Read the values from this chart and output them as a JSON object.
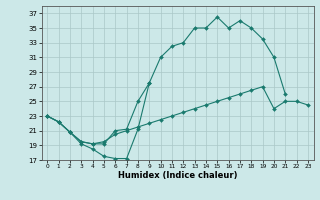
{
  "background_color": "#cce8e8",
  "line_color": "#1a7a6e",
  "grid_color": "#aac8c8",
  "xlabel": "Humidex (Indice chaleur)",
  "ylim": [
    17,
    38
  ],
  "xlim": [
    -0.5,
    23.5
  ],
  "yticks": [
    17,
    19,
    21,
    23,
    25,
    27,
    29,
    31,
    33,
    35,
    37
  ],
  "xticks": [
    0,
    1,
    2,
    3,
    4,
    5,
    6,
    7,
    8,
    9,
    10,
    11,
    12,
    13,
    14,
    15,
    16,
    17,
    18,
    19,
    20,
    21,
    22,
    23
  ],
  "lines": [
    {
      "x": [
        0,
        1,
        2,
        3,
        4,
        5,
        6,
        7,
        8,
        9,
        10,
        11,
        12,
        13,
        14,
        15,
        16,
        17,
        18,
        19,
        20,
        21
      ],
      "y": [
        23.0,
        22.2,
        20.8,
        19.2,
        18.5,
        17.5,
        17.2,
        17.2,
        21.2,
        27.5,
        31.0,
        32.5,
        33.0,
        35.0,
        35.0,
        36.5,
        35.0,
        36.0,
        35.0,
        33.5,
        31.0,
        26.0
      ]
    },
    {
      "x": [
        0,
        1,
        2,
        3,
        4,
        5,
        6,
        7,
        8,
        9
      ],
      "y": [
        23.0,
        22.2,
        20.8,
        19.5,
        19.2,
        19.2,
        21.0,
        21.2,
        25.0,
        27.5
      ]
    },
    {
      "x": [
        0,
        1,
        2,
        3,
        4,
        5,
        6,
        7,
        8,
        9,
        10,
        11,
        12,
        13,
        14,
        15,
        16,
        17,
        18,
        19,
        20,
        21,
        22,
        23
      ],
      "y": [
        23.0,
        22.2,
        20.8,
        19.5,
        19.2,
        19.5,
        20.5,
        21.0,
        21.5,
        22.0,
        22.5,
        23.0,
        23.5,
        24.0,
        24.5,
        25.0,
        25.5,
        26.0,
        26.5,
        27.0,
        24.0,
        25.0,
        25.0,
        24.5
      ]
    }
  ]
}
